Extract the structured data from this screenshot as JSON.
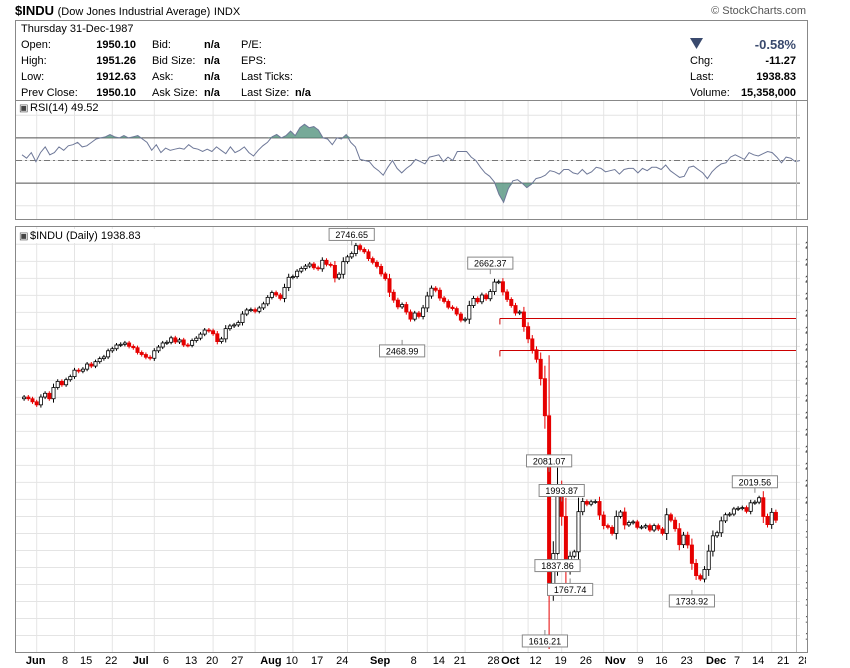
{
  "header": {
    "symbol": "$INDU",
    "name": "(Dow Jones Industrial Average)",
    "exchange": "INDX",
    "brand": "© StockCharts.com"
  },
  "quote": {
    "date": "Thursday  31-Dec-1987",
    "open_label": "Open:",
    "open": "1950.10",
    "high_label": "High:",
    "high": "1951.26",
    "low_label": "Low:",
    "low": "1912.63",
    "prev_label": "Prev Close:",
    "prev": "1950.10",
    "bid_label": "Bid:",
    "bid": "n/a",
    "bidsize_label": "Bid Size:",
    "bidsize": "n/a",
    "ask_label": "Ask:",
    "ask": "n/a",
    "asksize_label": "Ask Size:",
    "asksize": "n/a",
    "pe_label": "P/E:",
    "eps_label": "EPS:",
    "lastticks_label": "Last Ticks:",
    "lastsize_label": "Last Size:",
    "lastsize": "n/a",
    "change_pct": "-0.58%",
    "chg_label": "Chg:",
    "chg": "-11.27",
    "last_label": "Last:",
    "last": "1938.83",
    "volume_label": "Volume:",
    "volume": "15,358,000",
    "direction": "down"
  },
  "colors": {
    "up": "#000000",
    "down": "#e60000",
    "rsi_line": "#6e7898",
    "rsi_fill": "#5e9a86",
    "hline": "#cc0000",
    "grid": "#e4e4e4",
    "arrow": "#3a4a6e"
  },
  "chart_data": [
    {
      "type": "line",
      "title": "RSI(14) 49.52",
      "indicator": "RSI(14)",
      "last_value": 49.52,
      "ylim": [
        0,
        100
      ],
      "yticks": [
        "90",
        "70",
        "50",
        "30",
        "10"
      ],
      "levels": [
        70,
        50,
        30
      ],
      "values": [
        55,
        52,
        57,
        49,
        57,
        62,
        55,
        57,
        62,
        59,
        63,
        64,
        66,
        62,
        63,
        66,
        69,
        70,
        71,
        73,
        71,
        70,
        72,
        70,
        71,
        72,
        69,
        66,
        59,
        64,
        57,
        61,
        59,
        60,
        61,
        60,
        64,
        61,
        60,
        58,
        60,
        58,
        62,
        59,
        56,
        62,
        57,
        59,
        62,
        57,
        54,
        59,
        63,
        66,
        71,
        73,
        70,
        72,
        76,
        72,
        79,
        82,
        79,
        80,
        77,
        70,
        69,
        64,
        70,
        69,
        73,
        66,
        62,
        51,
        50,
        49,
        44,
        41,
        37,
        44,
        50,
        43,
        39,
        43,
        46,
        51,
        49,
        47,
        53,
        54,
        55,
        49,
        53,
        50,
        58,
        58,
        58,
        53,
        50,
        44,
        39,
        36,
        31,
        20,
        13,
        25,
        32,
        33,
        30,
        26,
        29,
        34,
        35,
        37,
        41,
        40,
        38,
        42,
        42,
        39,
        38,
        42,
        38,
        40,
        44,
        43,
        40,
        41,
        42,
        38,
        42,
        43,
        43,
        39,
        43,
        41,
        44,
        44,
        42,
        46,
        41,
        38,
        35,
        36,
        44,
        45,
        42,
        39,
        34,
        40,
        44,
        47,
        48,
        53,
        55,
        53,
        51,
        57,
        55,
        54,
        56,
        58,
        57,
        53,
        48,
        53,
        52,
        49,
        50
      ]
    },
    {
      "type": "candlestick",
      "title": "$INDU (Daily) 1938.83",
      "ylim": [
        1575,
        2795
      ],
      "yticks": [
        1600,
        1650,
        1700,
        1750,
        1800,
        1850,
        1900,
        1950,
        2000,
        2050,
        2100,
        2150,
        2200,
        2250,
        2300,
        2350,
        2400,
        2450,
        2500,
        2550,
        2600,
        2650,
        2700,
        2750
      ],
      "x_labels": [
        "Jun",
        "8",
        "15",
        "22",
        "Jul",
        "6",
        "13",
        "20",
        "27",
        "Aug",
        "10",
        "17",
        "24",
        "Sep",
        "8",
        "14",
        "21",
        "28",
        "Oct",
        "12",
        "19",
        "26",
        "Nov",
        "9",
        "16",
        "23",
        "Dec",
        "7",
        "14",
        "21",
        "28"
      ],
      "x_labels_bold": [
        "Jun",
        "Jul",
        "Aug",
        "Sep",
        "Oct",
        "Nov",
        "Dec"
      ],
      "closes": [
        2301,
        2296,
        2287,
        2278,
        2301,
        2312,
        2296,
        2329,
        2347,
        2337,
        2352,
        2361,
        2380,
        2377,
        2383,
        2398,
        2392,
        2405,
        2414,
        2419,
        2437,
        2443,
        2454,
        2456,
        2460,
        2450,
        2446,
        2432,
        2426,
        2418,
        2415,
        2437,
        2448,
        2460,
        2462,
        2475,
        2463,
        2469,
        2454,
        2453,
        2467,
        2474,
        2486,
        2498,
        2496,
        2487,
        2464,
        2472,
        2502,
        2510,
        2513,
        2520,
        2545,
        2557,
        2558,
        2553,
        2563,
        2575,
        2594,
        2608,
        2601,
        2591,
        2623,
        2653,
        2655,
        2671,
        2679,
        2686,
        2692,
        2681,
        2678,
        2703,
        2691,
        2688,
        2651,
        2662,
        2699,
        2713,
        2723,
        2746,
        2735,
        2728,
        2708,
        2697,
        2685,
        2663,
        2649,
        2609,
        2586,
        2566,
        2573,
        2551,
        2530,
        2548,
        2538,
        2563,
        2598,
        2621,
        2615,
        2592,
        2582,
        2565,
        2561,
        2545,
        2527,
        2530,
        2570,
        2591,
        2581,
        2601,
        2590,
        2611,
        2639,
        2640,
        2610,
        2588,
        2570,
        2548,
        2551,
        2508,
        2472,
        2440,
        2412,
        2355,
        2246,
        1738,
        1841,
        2028,
        1950,
        1793,
        1833,
        1846,
        1964,
        1994,
        1986,
        1993,
        1994,
        1954,
        1923,
        1918,
        1900,
        1950,
        1963,
        1925,
        1932,
        1934,
        1918,
        1919,
        1923,
        1910,
        1923,
        1913,
        1900,
        1955,
        1939,
        1914,
        1867,
        1895,
        1866,
        1812,
        1776,
        1766,
        1794,
        1848,
        1893,
        1902,
        1937,
        1955,
        1957,
        1972,
        1974,
        1976,
        1965,
        1990,
        1992,
        2005,
        1950,
        1926,
        1962,
        1939
      ],
      "annotations": [
        {
          "label": "2746.65",
          "value": 2746.65,
          "position": "above",
          "index": 78
        },
        {
          "label": "2662.37",
          "value": 2662.37,
          "position": "above",
          "index": 111
        },
        {
          "label": "2468.99",
          "value": 2468.99,
          "position": "below",
          "index": 90
        },
        {
          "label": "2081.07",
          "value": 2081.07,
          "position": "above",
          "index": 125
        },
        {
          "label": "1993.87",
          "value": 1993.87,
          "position": "above",
          "index": 128
        },
        {
          "label": "1837.86",
          "value": 1837.86,
          "position": "below",
          "index": 127
        },
        {
          "label": "1767.74",
          "value": 1767.74,
          "position": "below",
          "index": 130
        },
        {
          "label": "1616.21",
          "value": 1616.21,
          "position": "below",
          "index": 124
        },
        {
          "label": "1733.92",
          "value": 1733.92,
          "position": "below",
          "index": 159
        },
        {
          "label": "2019.56",
          "value": 2019.56,
          "position": "above",
          "index": 174
        }
      ],
      "hlines": [
        {
          "value": 2532,
          "from_index": 114
        },
        {
          "value": 2438,
          "from_index": 114
        }
      ]
    }
  ]
}
